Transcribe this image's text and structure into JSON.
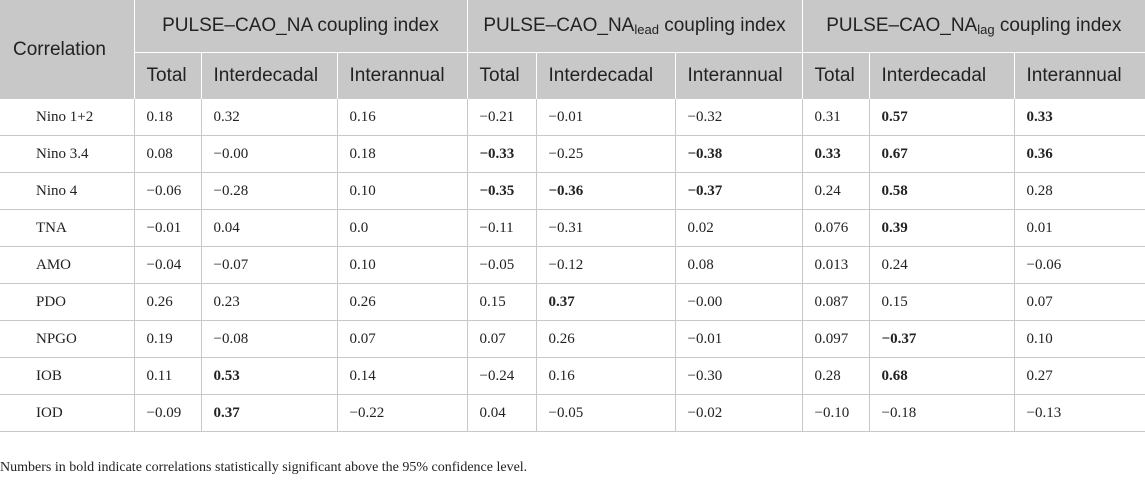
{
  "header": {
    "corner": "Correlation",
    "groups": [
      {
        "prefix": "PULSE–CAO_NA",
        "sub": "",
        "suffix": " coupling index"
      },
      {
        "prefix": "PULSE–CAO_NA",
        "sub": "lead",
        "suffix": " coupling index"
      },
      {
        "prefix": "PULSE–CAO_NA",
        "sub": "lag",
        "suffix": " coupling index"
      }
    ],
    "subcolumns": [
      "Total",
      "Interdecadal",
      "Interannual"
    ]
  },
  "rows": [
    {
      "label": "Nino 1+2",
      "values": [
        "0.18",
        "0.32",
        "0.16",
        "−0.21",
        "−0.01",
        "−0.32",
        "0.31",
        "0.57",
        "0.33"
      ],
      "bold": [
        false,
        false,
        false,
        false,
        false,
        false,
        false,
        true,
        true
      ]
    },
    {
      "label": "Nino 3.4",
      "values": [
        "0.08",
        "−0.00",
        "0.18",
        "−0.33",
        "−0.25",
        "−0.38",
        "0.33",
        "0.67",
        "0.36"
      ],
      "bold": [
        false,
        false,
        false,
        true,
        false,
        true,
        true,
        true,
        true
      ]
    },
    {
      "label": "Nino 4",
      "values": [
        "−0.06",
        "−0.28",
        "0.10",
        "−0.35",
        "−0.36",
        "−0.37",
        "0.24",
        "0.58",
        "0.28"
      ],
      "bold": [
        false,
        false,
        false,
        true,
        true,
        true,
        false,
        true,
        false
      ]
    },
    {
      "label": "TNA",
      "values": [
        "−0.01",
        "0.04",
        "0.0",
        "−0.11",
        "−0.31",
        "0.02",
        "0.076",
        "0.39",
        "0.01"
      ],
      "bold": [
        false,
        false,
        false,
        false,
        false,
        false,
        false,
        true,
        false
      ]
    },
    {
      "label": "AMO",
      "values": [
        "−0.04",
        "−0.07",
        "0.10",
        "−0.05",
        "−0.12",
        "0.08",
        "0.013",
        "0.24",
        "−0.06"
      ],
      "bold": [
        false,
        false,
        false,
        false,
        false,
        false,
        false,
        false,
        false
      ]
    },
    {
      "label": "PDO",
      "values": [
        "0.26",
        "0.23",
        "0.26",
        "0.15",
        "0.37",
        "−0.00",
        "0.087",
        "0.15",
        "0.07"
      ],
      "bold": [
        false,
        false,
        false,
        false,
        true,
        false,
        false,
        false,
        false
      ]
    },
    {
      "label": "NPGO",
      "values": [
        "0.19",
        "−0.08",
        "0.07",
        "0.07",
        "0.26",
        "−0.01",
        "0.097",
        "−0.37",
        "0.10"
      ],
      "bold": [
        false,
        false,
        false,
        false,
        false,
        false,
        false,
        true,
        false
      ]
    },
    {
      "label": "IOB",
      "values": [
        "0.11",
        "0.53",
        "0.14",
        "−0.24",
        "0.16",
        "−0.30",
        "0.28",
        "0.68",
        "0.27"
      ],
      "bold": [
        false,
        true,
        false,
        false,
        false,
        false,
        false,
        true,
        false
      ]
    },
    {
      "label": "IOD",
      "values": [
        "−0.09",
        "0.37",
        "−0.22",
        "0.04",
        "−0.05",
        "−0.02",
        "−0.10",
        "−0.18",
        "−0.13"
      ],
      "bold": [
        false,
        true,
        false,
        false,
        false,
        false,
        false,
        false,
        false
      ]
    }
  ],
  "footnote": "Numbers in bold indicate correlations statistically significant above the 95% confidence level."
}
